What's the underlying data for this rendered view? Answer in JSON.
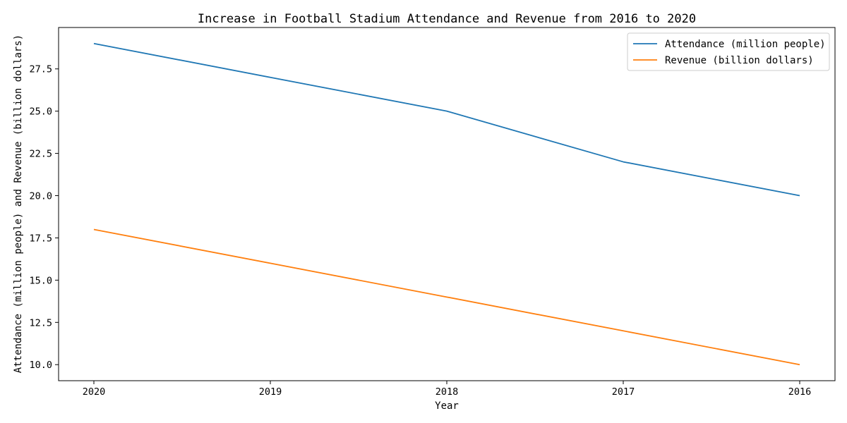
{
  "chart_data": {
    "type": "line",
    "title": "Increase in Football Stadium Attendance and Revenue from 2016 to 2020",
    "xlabel": "Year",
    "ylabel": "Attendance (million people) and Revenue (billion dollars)",
    "categories": [
      "2020",
      "2019",
      "2018",
      "2017",
      "2016"
    ],
    "series": [
      {
        "name": "Attendance (million people)",
        "values": [
          29,
          27,
          25,
          22,
          20
        ],
        "color": "#1f77b4"
      },
      {
        "name": "Revenue (billion dollars)",
        "values": [
          18,
          16,
          14,
          12,
          10
        ],
        "color": "#ff7f0e"
      }
    ],
    "yticks": [
      "10.0",
      "12.5",
      "15.0",
      "17.5",
      "20.0",
      "22.5",
      "25.0",
      "27.5"
    ],
    "ylim": [
      9.05,
      29.95
    ],
    "grid": false,
    "legend_position": "upper right"
  }
}
